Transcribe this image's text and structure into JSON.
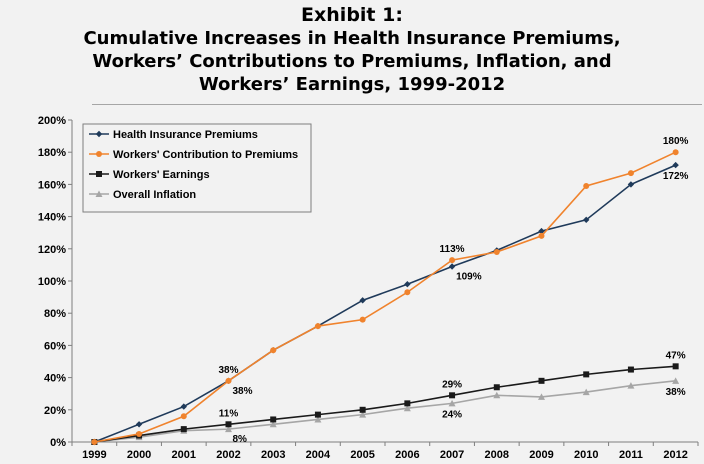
{
  "title": {
    "line1": "Exhibit 1:",
    "line2": "Cumulative Increases in Health Insurance Premiums,",
    "line3": "Workers’ Contributions to Premiums, Inflation, and",
    "line4": "Workers’ Earnings, 1999-2012"
  },
  "chart_data": {
    "type": "line",
    "title": "Exhibit 1: Cumulative Increases in Health Insurance Premiums, Workers’ Contributions to Premiums, Inflation, and Workers’ Earnings, 1999-2012",
    "x": [
      "1999",
      "2000",
      "2001",
      "2002",
      "2003",
      "2004",
      "2005",
      "2006",
      "2007",
      "2008",
      "2009",
      "2010",
      "2011",
      "2012"
    ],
    "ylim": [
      0,
      200
    ],
    "yticks": [
      0,
      20,
      40,
      60,
      80,
      100,
      120,
      140,
      160,
      180,
      200
    ],
    "ytick_suffix": "%",
    "grid": false,
    "legend_position": "top-left",
    "series": [
      {
        "name": "Health Insurance Premiums",
        "color": "#1f3a5a",
        "marker": "diamond",
        "values": [
          0,
          11,
          22,
          38,
          57,
          72,
          88,
          98,
          109,
          119,
          131,
          138,
          160,
          172
        ]
      },
      {
        "name": "Workers' Contribution to Premiums",
        "color": "#f0832d",
        "marker": "circle",
        "values": [
          0,
          5,
          16,
          38,
          57,
          72,
          76,
          93,
          113,
          118,
          128,
          159,
          167,
          180
        ]
      },
      {
        "name": "Workers' Earnings",
        "color": "#1a1a1a",
        "marker": "square",
        "values": [
          0,
          4,
          8,
          11,
          14,
          17,
          20,
          24,
          29,
          34,
          38,
          42,
          45,
          47
        ]
      },
      {
        "name": "Overall Inflation",
        "color": "#a6a6a6",
        "marker": "triangle",
        "values": [
          0,
          3,
          7,
          8,
          11,
          14,
          17,
          21,
          24,
          29,
          28,
          31,
          35,
          38
        ]
      }
    ],
    "annotations": [
      {
        "text": "38%",
        "x": "2002",
        "series": "Workers' Contribution to Premiums",
        "placement": "above"
      },
      {
        "text": "38%",
        "x": "2002",
        "series": "Health Insurance Premiums",
        "placement": "below-right"
      },
      {
        "text": "11%",
        "x": "2002",
        "series": "Workers' Earnings",
        "placement": "above"
      },
      {
        "text": "8%",
        "x": "2002",
        "series": "Overall Inflation",
        "placement": "below-right"
      },
      {
        "text": "113%",
        "x": "2007",
        "series": "Workers' Contribution to Premiums",
        "placement": "above"
      },
      {
        "text": "109%",
        "x": "2007",
        "series": "Health Insurance Premiums",
        "placement": "below-right"
      },
      {
        "text": "29%",
        "x": "2007",
        "series": "Workers' Earnings",
        "placement": "above"
      },
      {
        "text": "24%",
        "x": "2007",
        "series": "Overall Inflation",
        "placement": "below"
      },
      {
        "text": "180%",
        "x": "2012",
        "series": "Workers' Contribution to Premiums",
        "placement": "above"
      },
      {
        "text": "172%",
        "x": "2012",
        "series": "Health Insurance Premiums",
        "placement": "below"
      },
      {
        "text": "47%",
        "x": "2012",
        "series": "Workers' Earnings",
        "placement": "above"
      },
      {
        "text": "38%",
        "x": "2012",
        "series": "Overall Inflation",
        "placement": "below"
      }
    ]
  }
}
